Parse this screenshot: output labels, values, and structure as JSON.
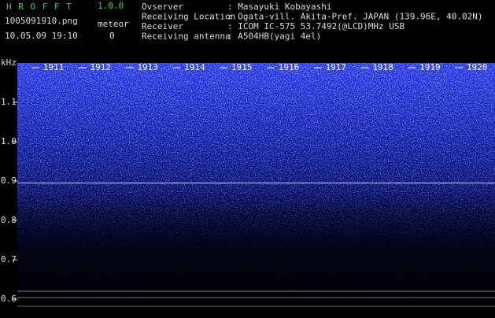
{
  "header": {
    "app": "H R O F F T",
    "version": "1.0.0",
    "file": "1005091910.png",
    "meteor_label": "meteor",
    "datetime": "10.05.09 19:10",
    "meteor_count": "0",
    "fields": [
      {
        "label": "Ovserver",
        "value": ": Masayuki Kobayashi"
      },
      {
        "label": "Receiving Location",
        "value": ": Ogata-vill. Akita-Pref. JAPAN (139.96E, 40.02N)"
      },
      {
        "label": "Receiver",
        "value": ": ICOM IC-575 53.7492(@LCD)MHz USB"
      },
      {
        "label": "Receiving antenna",
        "value": ": A504HB(yagi 4el)"
      }
    ]
  },
  "chart_data": {
    "type": "spectrogram",
    "y_label": "kHz",
    "categories": [
      "1911",
      "1912",
      "1913",
      "1914",
      "1915",
      "1916",
      "1917",
      "1918",
      "1919",
      "1920"
    ],
    "ylim": [
      0.56,
      1.2
    ],
    "yticks": [
      0.6,
      0.7,
      0.8,
      0.9,
      {
        "value": 1,
        "label": "1.0"
      },
      1.1
    ]
  }
}
